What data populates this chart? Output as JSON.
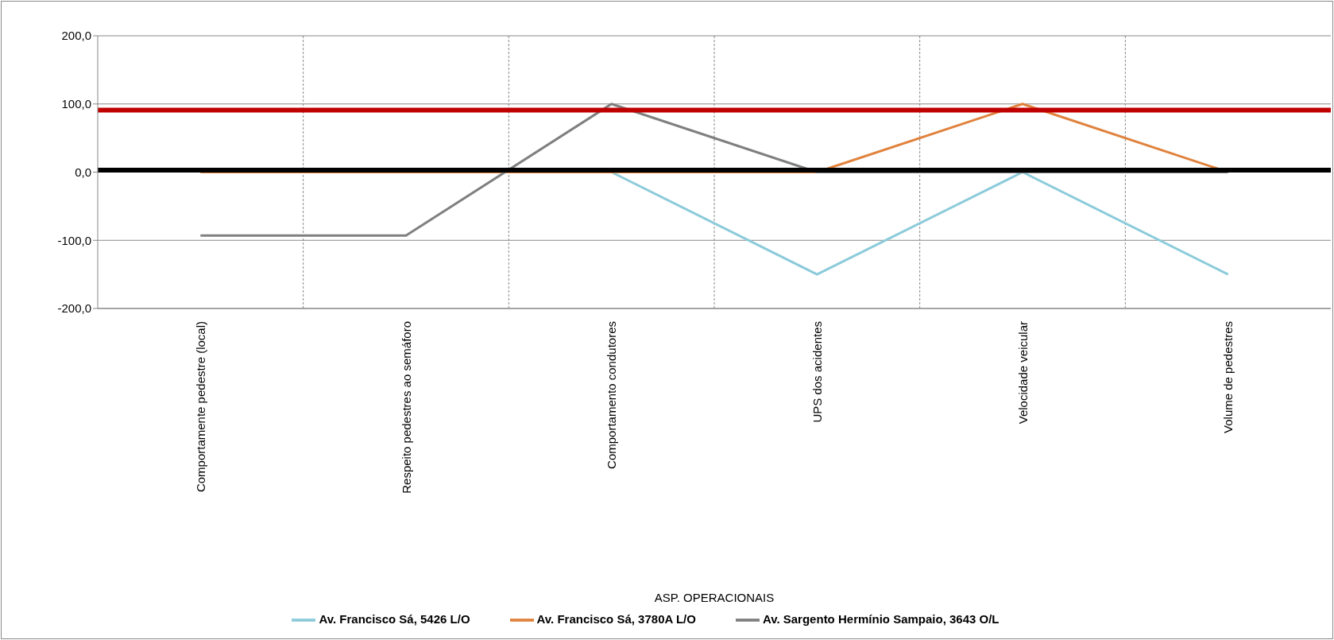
{
  "chart_data": {
    "type": "line",
    "annotations": [
      "ASP. OPERACIONAIS"
    ],
    "categories": [
      "Comportamente pedestre (local)",
      "Respeito pedestres ao semáforo",
      "Comportamento condutores",
      "UPS dos acidentes",
      "Velocidade veicular",
      "Volume de pedestres"
    ],
    "series": [
      {
        "name": "Av. Francisco Sá,  5426 L/O",
        "color": "#8ccbdb",
        "values": [
          0,
          0,
          0,
          -150,
          0,
          -150
        ]
      },
      {
        "name": "Av. Francisco Sá, 3780A L/O",
        "color": "#e0823d",
        "values": [
          0,
          0,
          0,
          0,
          100,
          0
        ]
      },
      {
        "name": "Av. Sargento Hermínio Sampaio,  3643 O/L",
        "color": "#7f7f7f",
        "values": [
          -93,
          -93,
          100,
          0,
          0,
          0
        ]
      }
    ],
    "ylim": [
      -200,
      200
    ],
    "yticks": [
      {
        "value": -200,
        "label": "-200,0"
      },
      {
        "value": -100,
        "label": "-100,0"
      },
      {
        "value": 0,
        "label": "0,0"
      },
      {
        "value": 100,
        "label": "100,0"
      },
      {
        "value": 200,
        "label": "200,0"
      }
    ],
    "ref_lines": [
      {
        "axis": "y",
        "value": 91,
        "color": "#c00000"
      },
      {
        "axis": "y",
        "value": 3,
        "color": "#000000"
      }
    ],
    "grid": true,
    "legend": "bottom",
    "marker": "none",
    "line_style": "solid"
  }
}
